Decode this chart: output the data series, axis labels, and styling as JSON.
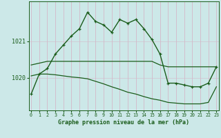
{
  "title": "Graphe pression niveau de la mer (hPa)",
  "background_color": "#cce8e8",
  "line_color": "#1a5c1a",
  "grid_color": "#d4b8c8",
  "hours": [
    0,
    1,
    2,
    3,
    4,
    5,
    6,
    7,
    8,
    9,
    10,
    11,
    12,
    13,
    14,
    15,
    16,
    17,
    18,
    19,
    20,
    21,
    22,
    23
  ],
  "main_values": [
    1019.55,
    1020.1,
    1020.25,
    1020.65,
    1020.9,
    1021.15,
    1021.35,
    1021.8,
    1021.55,
    1021.45,
    1021.25,
    1021.6,
    1021.5,
    1021.6,
    1021.35,
    1021.05,
    1020.65,
    1019.85,
    1019.85,
    1019.8,
    1019.75,
    1019.75,
    1019.85,
    1020.3
  ],
  "flat_high": [
    1020.35,
    1020.4,
    1020.45,
    1020.45,
    1020.45,
    1020.45,
    1020.45,
    1020.45,
    1020.45,
    1020.45,
    1020.45,
    1020.45,
    1020.45,
    1020.45,
    1020.45,
    1020.45,
    1020.35,
    1020.3,
    1020.3,
    1020.3,
    1020.3,
    1020.3,
    1020.3,
    1020.3
  ],
  "flat_low": [
    1020.05,
    1020.1,
    1020.1,
    1020.08,
    1020.05,
    1020.02,
    1020.0,
    1019.97,
    1019.9,
    1019.83,
    1019.75,
    1019.68,
    1019.6,
    1019.55,
    1019.48,
    1019.42,
    1019.38,
    1019.32,
    1019.3,
    1019.28,
    1019.28,
    1019.28,
    1019.32,
    1019.75
  ],
  "ytick_vals": [
    1020,
    1021
  ],
  "ylim": [
    1019.1,
    1022.1
  ],
  "xlim": [
    -0.3,
    23.3
  ]
}
